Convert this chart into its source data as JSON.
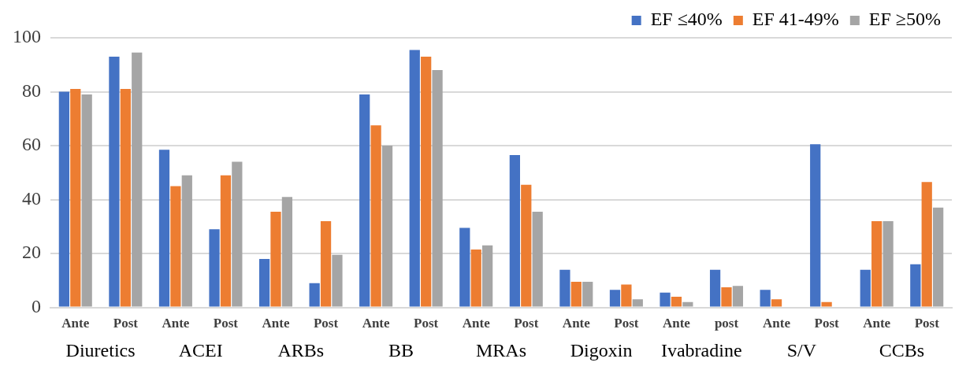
{
  "chart_data": {
    "type": "bar",
    "categories": [
      "Ante",
      "Post",
      "Ante",
      "Post",
      "Ante",
      "Post",
      "Ante",
      "Post",
      "Ante",
      "Post",
      "Ante",
      "Post",
      "Ante",
      "post",
      "Ante",
      "Post",
      "Ante",
      "Post"
    ],
    "annotations": [
      "Diuretics",
      "ACEI",
      "ARBs",
      "BB",
      "MRAs",
      "Digoxin",
      "Ivabradine",
      "S/V",
      "CCBs"
    ],
    "series": [
      {
        "name": "EF ≤40%",
        "color": "#4472c4",
        "values": [
          80,
          93,
          58.5,
          29,
          18,
          9,
          79,
          95.5,
          29.5,
          56.5,
          14,
          6.5,
          5.5,
          14,
          6.5,
          60.5,
          14,
          16
        ]
      },
      {
        "name": "EF 41-49%",
        "color": "#ed7d31",
        "values": [
          81,
          81,
          45,
          49,
          35.5,
          32,
          67.5,
          93,
          21.5,
          45.5,
          9.5,
          8.5,
          4,
          7.5,
          3,
          2,
          32,
          46.5
        ]
      },
      {
        "name": "EF ≥50%",
        "color": "#a5a5a5",
        "values": [
          79,
          94.5,
          49,
          54,
          41,
          19.5,
          60,
          88,
          23,
          35.5,
          9.5,
          3,
          2,
          8,
          null,
          null,
          32,
          37
        ]
      }
    ],
    "ylim": [
      0,
      100
    ],
    "yticks": [
      0,
      20,
      40,
      60,
      80,
      100
    ],
    "grid": "y",
    "legend": "top right"
  }
}
